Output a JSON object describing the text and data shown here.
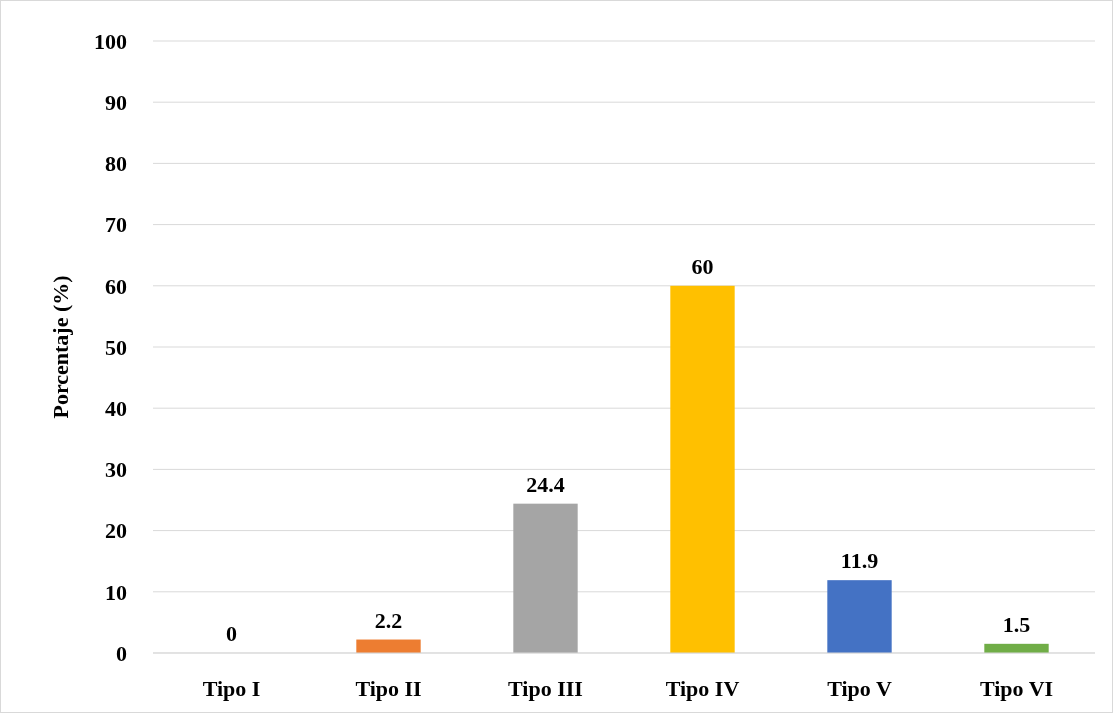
{
  "chart_data": {
    "type": "bar",
    "ylabel": "Porcentaje (%)",
    "categories": [
      "Tipo I",
      "Tipo II",
      "Tipo III",
      "Tipo IV",
      "Tipo V",
      "Tipo VI"
    ],
    "values": [
      0,
      2.2,
      24.4,
      60,
      11.9,
      1.5
    ],
    "colors": [
      "#5b9bd5",
      "#ed7d31",
      "#a5a5a5",
      "#ffc000",
      "#4472c4",
      "#70ad47"
    ],
    "ylim": [
      0,
      100
    ],
    "yticks": [
      0,
      10,
      20,
      30,
      40,
      50,
      60,
      70,
      80,
      90,
      100
    ],
    "grid": "y",
    "data_labels": true
  }
}
